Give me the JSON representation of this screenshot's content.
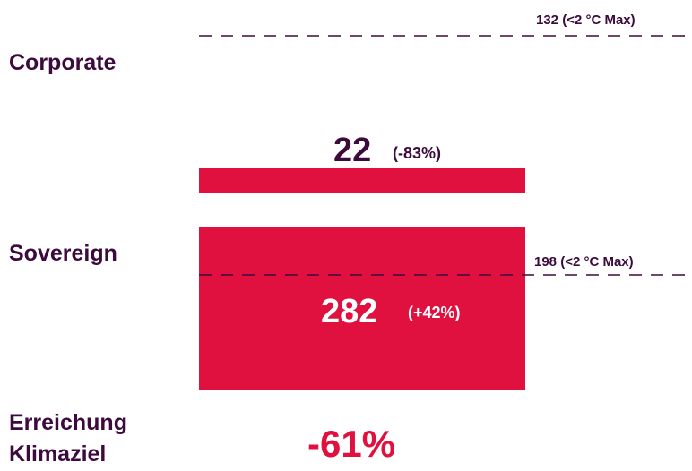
{
  "corporate": {
    "label": "Corporate",
    "value": "22",
    "change": "(-83%)",
    "limit": "132 (<2 °C Max)"
  },
  "sovereign": {
    "label": "Sovereign",
    "value": "282",
    "change": "(+42%)",
    "limit": "198 (<2 °C Max)"
  },
  "goal": {
    "label": [
      "Erreichung",
      "Klimaziel"
    ],
    "value": "-61%"
  }
}
